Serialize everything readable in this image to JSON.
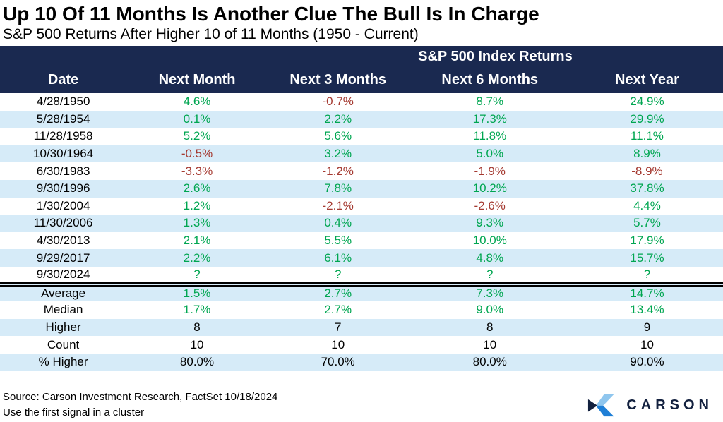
{
  "colors": {
    "header_navy": "#1A2950",
    "row_alt_blue": "#D6EBF8",
    "positive_green": "#00A651",
    "negative_red": "#A53A31",
    "logo_light_blue": "#8FC6EE",
    "logo_blue": "#1F7FD6",
    "logo_navy": "#13213F"
  },
  "header": {
    "title": "Up 10 Of 11 Months Is Another Clue The Bull Is In Charge",
    "subtitle": "S&P 500 Returns After Higher 10 of 11 Months (1950 - Current)"
  },
  "chart_data": {
    "type": "table",
    "title": "Up 10 Of 11 Months Is Another Clue The Bull Is In Charge",
    "subtitle": "S&P 500 Returns After Higher 10 of 11 Months (1950 - Current)",
    "group_header": "S&P 500 Index Returns",
    "columns": [
      "Date",
      "Next Month",
      "Next 3 Months",
      "Next 6 Months",
      "Next Year"
    ],
    "rows": [
      {
        "label": "4/28/1950",
        "cells": [
          {
            "v": "4.6%",
            "s": "up"
          },
          {
            "v": "-0.7%",
            "s": "down"
          },
          {
            "v": "8.7%",
            "s": "up"
          },
          {
            "v": "24.9%",
            "s": "up"
          }
        ]
      },
      {
        "label": "5/28/1954",
        "cells": [
          {
            "v": "0.1%",
            "s": "up"
          },
          {
            "v": "2.2%",
            "s": "up"
          },
          {
            "v": "17.3%",
            "s": "up"
          },
          {
            "v": "29.9%",
            "s": "up"
          }
        ]
      },
      {
        "label": "11/28/1958",
        "cells": [
          {
            "v": "5.2%",
            "s": "up"
          },
          {
            "v": "5.6%",
            "s": "up"
          },
          {
            "v": "11.8%",
            "s": "up"
          },
          {
            "v": "11.1%",
            "s": "up"
          }
        ]
      },
      {
        "label": "10/30/1964",
        "cells": [
          {
            "v": "-0.5%",
            "s": "down"
          },
          {
            "v": "3.2%",
            "s": "up"
          },
          {
            "v": "5.0%",
            "s": "up"
          },
          {
            "v": "8.9%",
            "s": "up"
          }
        ]
      },
      {
        "label": "6/30/1983",
        "cells": [
          {
            "v": "-3.3%",
            "s": "down"
          },
          {
            "v": "-1.2%",
            "s": "down"
          },
          {
            "v": "-1.9%",
            "s": "down"
          },
          {
            "v": "-8.9%",
            "s": "down"
          }
        ]
      },
      {
        "label": "9/30/1996",
        "cells": [
          {
            "v": "2.6%",
            "s": "up"
          },
          {
            "v": "7.8%",
            "s": "up"
          },
          {
            "v": "10.2%",
            "s": "up"
          },
          {
            "v": "37.8%",
            "s": "up"
          }
        ]
      },
      {
        "label": "1/30/2004",
        "cells": [
          {
            "v": "1.2%",
            "s": "up"
          },
          {
            "v": "-2.1%",
            "s": "down"
          },
          {
            "v": "-2.6%",
            "s": "down"
          },
          {
            "v": "4.4%",
            "s": "up"
          }
        ]
      },
      {
        "label": "11/30/2006",
        "cells": [
          {
            "v": "1.3%",
            "s": "up"
          },
          {
            "v": "0.4%",
            "s": "up"
          },
          {
            "v": "9.3%",
            "s": "up"
          },
          {
            "v": "5.7%",
            "s": "up"
          }
        ]
      },
      {
        "label": "4/30/2013",
        "cells": [
          {
            "v": "2.1%",
            "s": "up"
          },
          {
            "v": "5.5%",
            "s": "up"
          },
          {
            "v": "10.0%",
            "s": "up"
          },
          {
            "v": "17.9%",
            "s": "up"
          }
        ]
      },
      {
        "label": "9/29/2017",
        "cells": [
          {
            "v": "2.2%",
            "s": "up"
          },
          {
            "v": "6.1%",
            "s": "up"
          },
          {
            "v": "4.8%",
            "s": "up"
          },
          {
            "v": "15.7%",
            "s": "up"
          }
        ]
      },
      {
        "label": "9/30/2024",
        "cells": [
          {
            "v": "?",
            "s": "up"
          },
          {
            "v": "?",
            "s": "up"
          },
          {
            "v": "?",
            "s": "up"
          },
          {
            "v": "?",
            "s": "up"
          }
        ]
      }
    ],
    "summary_rows": [
      {
        "label": "Average",
        "cells": [
          {
            "v": "1.5%",
            "s": "up"
          },
          {
            "v": "2.7%",
            "s": "up"
          },
          {
            "v": "7.3%",
            "s": "up"
          },
          {
            "v": "14.7%",
            "s": "up"
          }
        ]
      },
      {
        "label": "Median",
        "cells": [
          {
            "v": "1.7%",
            "s": "up"
          },
          {
            "v": "2.7%",
            "s": "up"
          },
          {
            "v": "9.0%",
            "s": "up"
          },
          {
            "v": "13.4%",
            "s": "up"
          }
        ]
      },
      {
        "label": "Higher",
        "cells": [
          {
            "v": "8",
            "s": "flat"
          },
          {
            "v": "7",
            "s": "flat"
          },
          {
            "v": "8",
            "s": "flat"
          },
          {
            "v": "9",
            "s": "flat"
          }
        ]
      },
      {
        "label": "Count",
        "cells": [
          {
            "v": "10",
            "s": "flat"
          },
          {
            "v": "10",
            "s": "flat"
          },
          {
            "v": "10",
            "s": "flat"
          },
          {
            "v": "10",
            "s": "flat"
          }
        ]
      },
      {
        "label": "% Higher",
        "cells": [
          {
            "v": "80.0%",
            "s": "flat"
          },
          {
            "v": "70.0%",
            "s": "flat"
          },
          {
            "v": "80.0%",
            "s": "flat"
          },
          {
            "v": "90.0%",
            "s": "flat"
          }
        ]
      }
    ]
  },
  "footer": {
    "source": "Source: Carson Investment Research, FactSet 10/18/2024",
    "note": "Use the first signal in a cluster",
    "logo_text": "CARSON"
  }
}
